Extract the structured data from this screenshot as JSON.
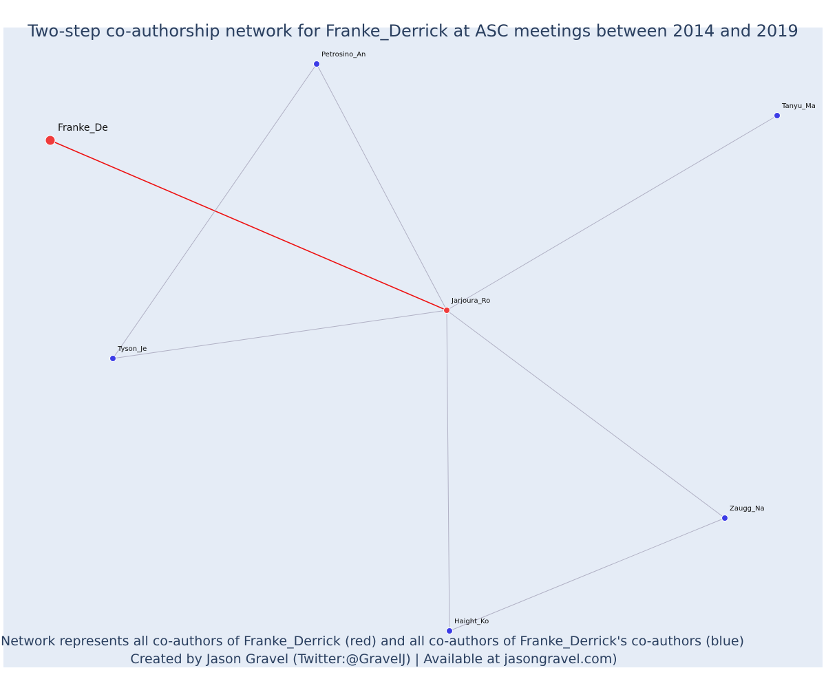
{
  "title": "Two-step co-authorship network for Franke_Derrick at ASC meetings between 2014 and 2019",
  "caption": {
    "line1": "Network represents all co-authors of Franke_Derrick (red) and all co-authors of Franke_Derrick's co-authors (blue)",
    "line2": "Created by Jason Gravel (Twitter:@GravelJ) | Available at jasongravel.com)"
  },
  "colors": {
    "background": "#e5ecf6",
    "focal_edge": "#ee1111",
    "other_edge": "#b0b0c4",
    "red_node": "#ef3b3b",
    "blue_node": "#3c3ce6",
    "title_text": "#2a3f5f"
  },
  "nodes": [
    {
      "id": "franke",
      "label": "Franke_De",
      "group": "red",
      "focal": true
    },
    {
      "id": "jarjoura",
      "label": "Jarjoura_Ro",
      "group": "red",
      "focal": false
    },
    {
      "id": "petrosino",
      "label": "Petrosino_An",
      "group": "blue",
      "focal": false
    },
    {
      "id": "tanyu",
      "label": "Tanyu_Ma",
      "group": "blue",
      "focal": false
    },
    {
      "id": "tyson",
      "label": "Tyson_Je",
      "group": "blue",
      "focal": false
    },
    {
      "id": "zaugg",
      "label": "Zaugg_Na",
      "group": "blue",
      "focal": false
    },
    {
      "id": "haight",
      "label": "Haight_Ko",
      "group": "blue",
      "focal": false
    }
  ],
  "edges": [
    {
      "source": "franke",
      "target": "jarjoura",
      "type": "focal"
    },
    {
      "source": "petrosino",
      "target": "jarjoura",
      "type": "other"
    },
    {
      "source": "petrosino",
      "target": "tyson",
      "type": "other"
    },
    {
      "source": "tanyu",
      "target": "jarjoura",
      "type": "other"
    },
    {
      "source": "tyson",
      "target": "jarjoura",
      "type": "other"
    },
    {
      "source": "zaugg",
      "target": "jarjoura",
      "type": "other"
    },
    {
      "source": "haight",
      "target": "jarjoura",
      "type": "other"
    },
    {
      "source": "haight",
      "target": "zaugg",
      "type": "other"
    }
  ]
}
